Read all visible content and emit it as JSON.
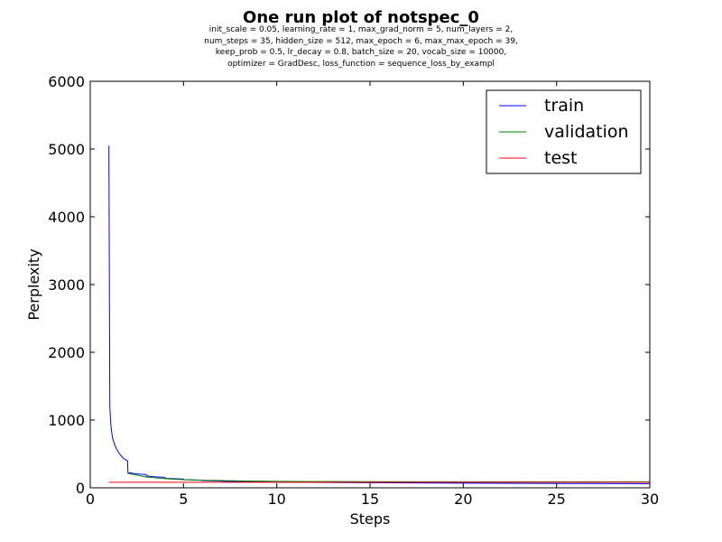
{
  "chart_data": {
    "type": "line",
    "title": "One run plot of notspec_0",
    "subtitle_lines": [
      "init_scale = 0.05, learning_rate = 1, max_grad_norm = 5, num_layers = 2,",
      "num_steps = 35, hidden_size = 512, max_epoch = 6, max_max_epoch = 39,",
      "keep_prob = 0.5, lr_decay = 0.8, batch_size = 20, vocab_size = 10000,",
      "optimizer = GradDesc, loss_function = sequence_loss_by_exampl"
    ],
    "xlabel": "Steps",
    "ylabel": "Perplexity",
    "xlim": [
      0,
      30
    ],
    "ylim": [
      0,
      6000
    ],
    "xticks": [
      0,
      5,
      10,
      15,
      20,
      25,
      30
    ],
    "yticks": [
      0,
      1000,
      2000,
      3000,
      4000,
      5000,
      6000
    ],
    "legend_position": "top-right",
    "grid": false,
    "series": [
      {
        "name": "train",
        "color": "#0000ff",
        "points": [
          [
            1.0,
            5050
          ],
          [
            1.02,
            3500
          ],
          [
            1.05,
            1200
          ],
          [
            1.1,
            950
          ],
          [
            1.15,
            820
          ],
          [
            1.2,
            730
          ],
          [
            1.3,
            640
          ],
          [
            1.4,
            580
          ],
          [
            1.5,
            530
          ],
          [
            1.6,
            490
          ],
          [
            1.7,
            460
          ],
          [
            1.8,
            430
          ],
          [
            1.95,
            405
          ],
          [
            2.0,
            400
          ],
          [
            2.02,
            225
          ],
          [
            2.5,
            205
          ],
          [
            3.0,
            195
          ],
          [
            3.02,
            175
          ],
          [
            3.5,
            162
          ],
          [
            4.0,
            155
          ],
          [
            4.02,
            140
          ],
          [
            4.5,
            135
          ],
          [
            5.0,
            128
          ],
          [
            5.02,
            120
          ],
          [
            5.5,
            117
          ],
          [
            6.0,
            112
          ],
          [
            6.02,
            106
          ],
          [
            6.5,
            104
          ],
          [
            7.0,
            100
          ],
          [
            7.02,
            96
          ],
          [
            8.0,
            92
          ],
          [
            9.0,
            88
          ],
          [
            10.0,
            84
          ],
          [
            12.0,
            80
          ],
          [
            15.0,
            75
          ],
          [
            20.0,
            68
          ],
          [
            25.0,
            63
          ],
          [
            30.0,
            60
          ]
        ]
      },
      {
        "name": "validation",
        "color": "#008000",
        "points": [
          [
            2.0,
            215
          ],
          [
            3.0,
            160
          ],
          [
            4.0,
            135
          ],
          [
            5.0,
            120
          ],
          [
            6.0,
            112
          ],
          [
            7.0,
            106
          ],
          [
            8.0,
            102
          ],
          [
            9.0,
            98
          ],
          [
            10.0,
            95
          ],
          [
            12.0,
            92
          ],
          [
            15.0,
            90
          ],
          [
            20.0,
            89
          ],
          [
            25.0,
            88
          ],
          [
            30.0,
            88
          ]
        ]
      },
      {
        "name": "test",
        "color": "#ff0000",
        "points": [
          [
            1.0,
            82
          ],
          [
            30.0,
            82
          ]
        ]
      }
    ]
  }
}
